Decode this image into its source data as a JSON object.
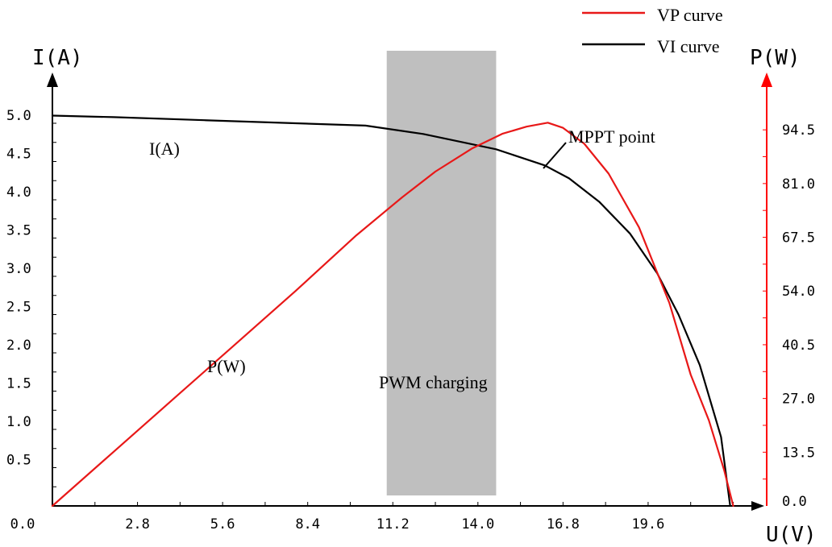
{
  "chart_data": {
    "type": "line",
    "left_axis_title": "I(A)",
    "right_axis_title": "P(W)",
    "x_axis_title": "U(V)",
    "x_ticks": [
      "0.0",
      "2.8",
      "5.6",
      "8.4",
      "11.2",
      "14.0",
      "16.8",
      "19.6"
    ],
    "y_left_ticks": [
      "0.5",
      "1.0",
      "1.5",
      "2.0",
      "2.5",
      "3.0",
      "3.5",
      "4.0",
      "4.5",
      "5.0"
    ],
    "y_right_ticks": [
      "0.0",
      "13.5",
      "27.0",
      "40.5",
      "54.0",
      "67.5",
      "81.0",
      "94.5"
    ],
    "xlim": [
      0,
      23.2
    ],
    "ylim_left": [
      0,
      5.1
    ],
    "ylim_right": [
      0,
      95
    ],
    "legend": [
      {
        "name": "VP curve",
        "color": "#e81818"
      },
      {
        "name": "VI curve",
        "color": "#000000"
      }
    ],
    "legend_position": "top-right",
    "annotations": {
      "current_label": "I(A)",
      "power_label": "P(W)",
      "mppt_label": "MPPT point",
      "pwm_label": "PWM charging"
    },
    "pwm_region": {
      "x_start": 11.0,
      "x_end": 14.6
    },
    "series": [
      {
        "name": "VI curve",
        "axis": "left",
        "color": "#000000",
        "x": [
          0.0,
          2.0,
          5.0,
          8.0,
          10.3,
          12.2,
          14.6,
          16.2,
          17.0,
          18.0,
          19.0,
          19.9,
          20.6,
          21.3,
          22.0,
          22.3
        ],
        "y": [
          5.1,
          5.08,
          5.04,
          5.0,
          4.97,
          4.86,
          4.66,
          4.45,
          4.28,
          3.97,
          3.56,
          3.04,
          2.5,
          1.84,
          0.9,
          0.0
        ]
      },
      {
        "name": "VP curve",
        "axis": "right",
        "color": "#e81818",
        "x": [
          0.0,
          2.0,
          4.0,
          6.0,
          8.0,
          10.0,
          11.5,
          12.6,
          13.8,
          14.8,
          15.6,
          16.3,
          16.8,
          17.5,
          18.3,
          19.3,
          20.3,
          21.0,
          21.6,
          22.1,
          22.4
        ],
        "y": [
          0.0,
          13.5,
          27.0,
          40.5,
          54.0,
          68.0,
          77.5,
          84.0,
          89.8,
          93.5,
          95.3,
          96.3,
          95.0,
          91.0,
          83.5,
          70.0,
          51.0,
          33.0,
          21.5,
          9.0,
          0.0
        ]
      }
    ]
  }
}
